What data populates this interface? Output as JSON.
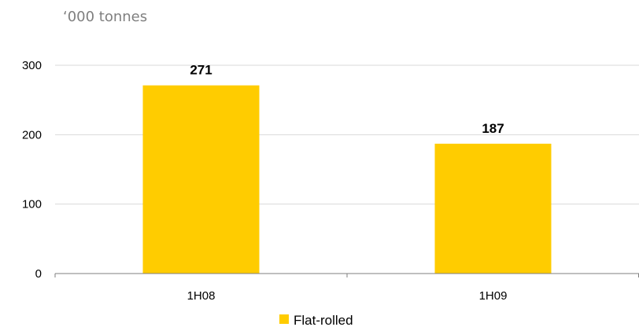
{
  "chart_data": {
    "type": "bar",
    "unit_label": "‘000 tonnes",
    "categories": [
      "1H08",
      "1H09"
    ],
    "series": [
      {
        "name": "Flat-rolled",
        "values": [
          271,
          187
        ],
        "color": "#ffcc00"
      }
    ],
    "data_labels": [
      "271",
      "187"
    ],
    "ylim": [
      0,
      300
    ],
    "yticks": [
      0,
      100,
      200,
      300
    ],
    "ytick_labels": [
      "0",
      "100",
      "200",
      "300"
    ],
    "grid": true,
    "legend_position": "bottom",
    "legend_label": "Flat-rolled"
  }
}
